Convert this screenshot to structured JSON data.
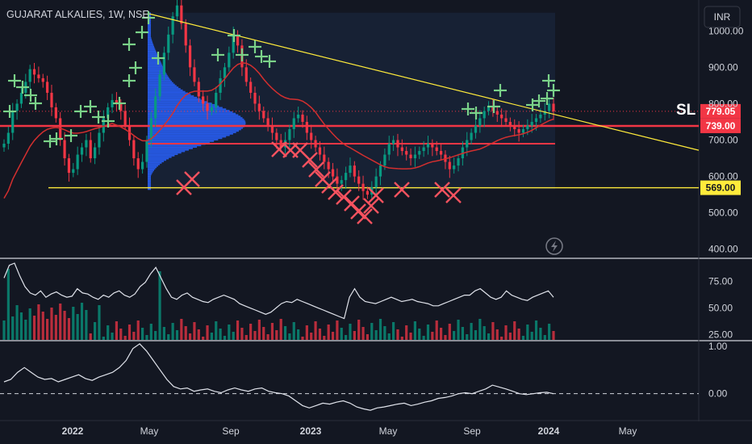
{
  "chart_data": {
    "type": "candlestick",
    "title": "GUJARAT ALKALIES, 1W, NSE",
    "currency": "INR",
    "price_panel": {
      "y_ticks": [
        "1000.00",
        "900.00",
        "800.00",
        "700.00",
        "600.00",
        "500.00",
        "400.00"
      ],
      "ylim": [
        375,
        1085
      ],
      "current_price": "779.05",
      "levels": [
        {
          "label": "739.00",
          "value": 739,
          "color": "#f23645"
        },
        {
          "label": "690.00",
          "value": 690,
          "color": "#f23645",
          "unlabeled": true
        },
        {
          "label": "569.00",
          "value": 569,
          "color": "#ffeb3b"
        }
      ],
      "annotation": "SL",
      "trendline": {
        "from": [
          0.0,
          1047
        ],
        "to": [
          1.0,
          670
        ]
      },
      "closes": [
        690,
        720,
        780,
        800,
        830,
        860,
        895,
        880,
        870,
        860,
        830,
        790,
        760,
        700,
        650,
        610,
        620,
        660,
        680,
        700,
        650,
        680,
        720,
        760,
        790,
        810,
        800,
        780,
        740,
        700,
        650,
        620,
        640,
        700,
        760,
        820,
        880,
        940,
        990,
        1040,
        1070,
        1020,
        960,
        900,
        860,
        820,
        800,
        780,
        790,
        830,
        870,
        900,
        940,
        990,
        960,
        900,
        860,
        830,
        800,
        780,
        760,
        740,
        720,
        700,
        680,
        700,
        730,
        760,
        770,
        750,
        720,
        700,
        680,
        660,
        640,
        620,
        600,
        580,
        590,
        610,
        630,
        600,
        580,
        560,
        550,
        570,
        600,
        630,
        660,
        690,
        700,
        680,
        670,
        660,
        650,
        660,
        670,
        680,
        690,
        680,
        670,
        660,
        640,
        620,
        630,
        650,
        680,
        700,
        720,
        740,
        760,
        780,
        790,
        780,
        770,
        760,
        750,
        740,
        730,
        720,
        730,
        740,
        750,
        760,
        770,
        780,
        800,
        779
      ],
      "volume_profile_peak": 745
    },
    "indicator_1": {
      "y_ticks": [
        "75.00",
        "50.00",
        "25.00"
      ],
      "ylim": [
        20,
        95
      ],
      "line": [
        78,
        90,
        92,
        80,
        70,
        64,
        62,
        66,
        60,
        63,
        65,
        62,
        60,
        61,
        68,
        64,
        63,
        60,
        58,
        62,
        60,
        64,
        66,
        62,
        60,
        63,
        70,
        74,
        82,
        88,
        78,
        68,
        60,
        58,
        62,
        64,
        60,
        58,
        56,
        55,
        58,
        60,
        62,
        60,
        58,
        54,
        52,
        50,
        48,
        46,
        44,
        46,
        50,
        54,
        56,
        55,
        58,
        56,
        54,
        52,
        50,
        48,
        46,
        44,
        42,
        40,
        60,
        68,
        60,
        56,
        55,
        54,
        56,
        58,
        60,
        58,
        56,
        57,
        58,
        56,
        55,
        54,
        52,
        52,
        54,
        56,
        58,
        60,
        62,
        62,
        66,
        68,
        64,
        60,
        58,
        60,
        66,
        62,
        60,
        58,
        57,
        60,
        62,
        64,
        66,
        60
      ]
    },
    "indicator_2": {
      "y_ticks": [
        "1.00",
        "0.00"
      ],
      "ylim": [
        -0.55,
        1.1
      ],
      "line": [
        0.25,
        0.3,
        0.45,
        0.55,
        0.45,
        0.35,
        0.3,
        0.32,
        0.25,
        0.3,
        0.35,
        0.4,
        0.32,
        0.28,
        0.35,
        0.4,
        0.45,
        0.55,
        0.7,
        0.95,
        1.05,
        0.9,
        0.7,
        0.5,
        0.3,
        0.15,
        0.1,
        0.12,
        0.05,
        0.08,
        0.1,
        0.05,
        0.02,
        0.08,
        0.12,
        0.08,
        0.05,
        0.1,
        0.12,
        0.05,
        0.02,
        0.0,
        -0.05,
        -0.15,
        -0.25,
        -0.3,
        -0.25,
        -0.2,
        -0.22,
        -0.18,
        -0.15,
        -0.2,
        -0.28,
        -0.32,
        -0.35,
        -0.3,
        -0.28,
        -0.25,
        -0.22,
        -0.2,
        -0.25,
        -0.22,
        -0.18,
        -0.15,
        -0.1,
        -0.08,
        -0.05,
        0.0,
        0.02,
        0.0,
        0.05,
        0.1,
        0.18,
        0.14,
        0.1,
        0.05,
        0.0,
        -0.02,
        0.0,
        0.02,
        0.03,
        0.0
      ]
    },
    "x_ticks": [
      {
        "label": "2022",
        "bold": true
      },
      {
        "label": "May"
      },
      {
        "label": "Sep"
      },
      {
        "label": "2023",
        "bold": true
      },
      {
        "label": "May"
      },
      {
        "label": "Sep"
      },
      {
        "label": "2024",
        "bold": true
      },
      {
        "label": "May"
      }
    ]
  }
}
